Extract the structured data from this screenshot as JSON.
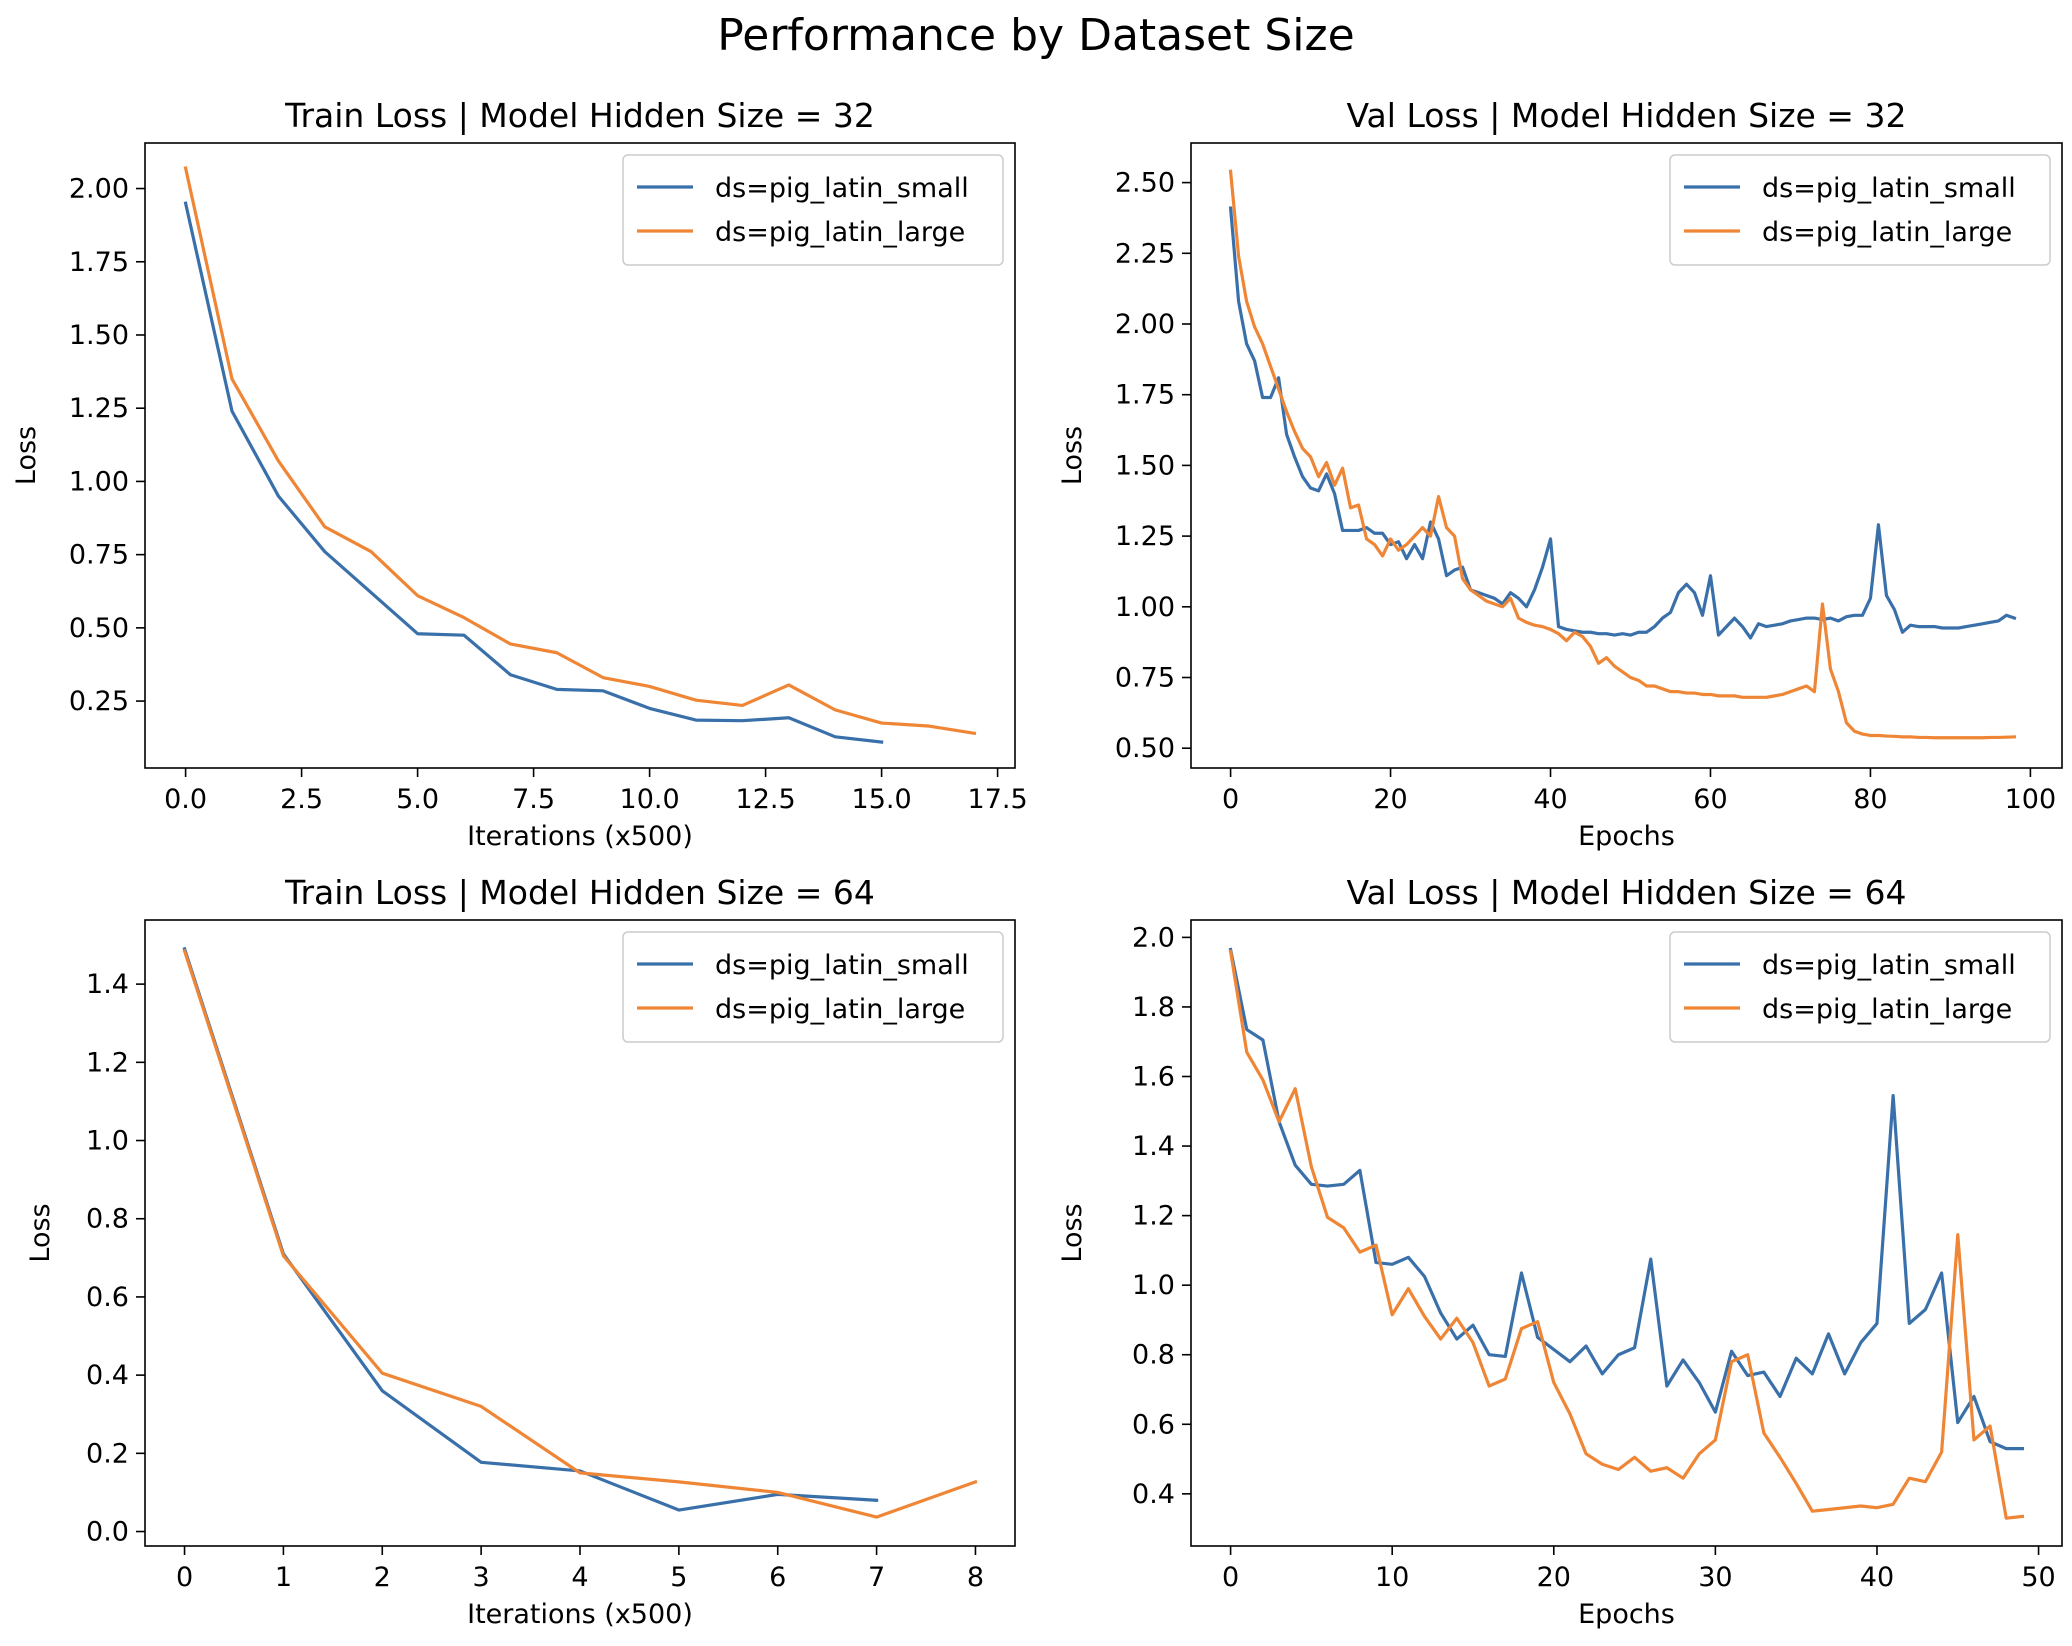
{
  "suptitle": "Performance by Dataset Size",
  "colors": {
    "pig_latin_small": "#3a70aa",
    "pig_latin_large": "#ef8636"
  },
  "chart_data": [
    {
      "type": "line",
      "title": "Train Loss | Model Hidden Size = 32",
      "xlabel": "Iterations (x500)",
      "ylabel": "Loss",
      "xlim": [
        -0.875,
        17.875
      ],
      "ylim": [
        0.0215,
        2.1555
      ],
      "xticks": [
        0.0,
        2.5,
        5.0,
        7.5,
        10.0,
        12.5,
        15.0,
        17.5
      ],
      "xtick_labels": [
        "0.0",
        "2.5",
        "5.0",
        "7.5",
        "10.0",
        "12.5",
        "15.0",
        "17.5"
      ],
      "yticks": [
        0.25,
        0.5,
        0.75,
        1.0,
        1.25,
        1.5,
        1.75,
        2.0
      ],
      "ytick_labels": [
        "0.25",
        "0.50",
        "0.75",
        "1.00",
        "1.25",
        "1.50",
        "1.75",
        "2.00"
      ],
      "legend": "top-right",
      "series": [
        {
          "name": "ds=pig_latin_small",
          "color": "#3a70aa",
          "x": [
            0,
            1,
            2,
            3,
            4,
            5,
            6,
            7,
            8,
            9,
            10,
            11,
            12,
            13,
            14,
            15
          ],
          "y": [
            1.95,
            1.24,
            0.95,
            0.76,
            0.62,
            0.48,
            0.475,
            0.34,
            0.29,
            0.285,
            0.225,
            0.185,
            0.183,
            0.193,
            0.128,
            0.11
          ]
        },
        {
          "name": "ds=pig_latin_large",
          "color": "#ef8636",
          "x": [
            0,
            1,
            2,
            3,
            4,
            5,
            6,
            7,
            8,
            9,
            10,
            11,
            12,
            13,
            14,
            15,
            16,
            17
          ],
          "y": [
            2.07,
            1.35,
            1.07,
            0.845,
            0.76,
            0.61,
            0.535,
            0.445,
            0.415,
            0.33,
            0.3,
            0.253,
            0.235,
            0.305,
            0.22,
            0.175,
            0.165,
            0.14
          ]
        }
      ]
    },
    {
      "type": "line",
      "title": "Val Loss | Model Hidden Size = 32",
      "xlabel": "Epochs",
      "ylabel": "Loss",
      "xlim": [
        -4.95,
        103.95
      ],
      "ylim": [
        0.43,
        2.64
      ],
      "xticks": [
        0,
        20,
        40,
        60,
        80,
        100
      ],
      "xtick_labels": [
        "0",
        "20",
        "40",
        "60",
        "80",
        "100"
      ],
      "yticks": [
        0.5,
        0.75,
        1.0,
        1.25,
        1.5,
        1.75,
        2.0,
        2.25,
        2.5
      ],
      "ytick_labels": [
        "0.50",
        "0.75",
        "1.00",
        "1.25",
        "1.50",
        "1.75",
        "2.00",
        "2.25",
        "2.50"
      ],
      "legend": "top-right",
      "series": [
        {
          "name": "ds=pig_latin_small",
          "color": "#3a70aa",
          "x": [
            0,
            1,
            2,
            3,
            4,
            5,
            6,
            7,
            8,
            9,
            10,
            11,
            12,
            13,
            14,
            15,
            16,
            17,
            18,
            19,
            20,
            21,
            22,
            23,
            24,
            25,
            26,
            27,
            28,
            29,
            30,
            31,
            32,
            33,
            34,
            35,
            36,
            37,
            38,
            39,
            40,
            41,
            42,
            43,
            44,
            45,
            46,
            47,
            48,
            49,
            50,
            51,
            52,
            53,
            54,
            55,
            56,
            57,
            58,
            59,
            60,
            61,
            62,
            63,
            64,
            65,
            66,
            67,
            68,
            69,
            70,
            71,
            72,
            73,
            74,
            75,
            76,
            77,
            78,
            79,
            80,
            81,
            82,
            83,
            84,
            85,
            86,
            87,
            88,
            89,
            90,
            91,
            92,
            93,
            94,
            95,
            96,
            97,
            98
          ],
          "y": [
            2.41,
            2.08,
            1.93,
            1.87,
            1.74,
            1.74,
            1.81,
            1.61,
            1.53,
            1.46,
            1.42,
            1.41,
            1.47,
            1.4,
            1.27,
            1.27,
            1.27,
            1.28,
            1.26,
            1.26,
            1.22,
            1.23,
            1.17,
            1.22,
            1.17,
            1.3,
            1.24,
            1.11,
            1.13,
            1.14,
            1.06,
            1.05,
            1.04,
            1.03,
            1.01,
            1.05,
            1.03,
            1.0,
            1.06,
            1.14,
            1.24,
            0.93,
            0.92,
            0.915,
            0.91,
            0.91,
            0.905,
            0.905,
            0.9,
            0.905,
            0.9,
            0.91,
            0.91,
            0.93,
            0.96,
            0.98,
            1.05,
            1.08,
            1.05,
            0.97,
            1.11,
            0.9,
            0.93,
            0.96,
            0.93,
            0.89,
            0.94,
            0.93,
            0.935,
            0.94,
            0.95,
            0.955,
            0.96,
            0.96,
            0.955,
            0.96,
            0.95,
            0.965,
            0.97,
            0.97,
            1.03,
            1.29,
            1.04,
            0.99,
            0.91,
            0.935,
            0.93,
            0.93,
            0.93,
            0.925,
            0.925,
            0.925,
            0.93,
            0.935,
            0.94,
            0.945,
            0.95,
            0.97,
            0.96
          ]
        },
        {
          "name": "ds=pig_latin_large",
          "color": "#ef8636",
          "x": [
            0,
            1,
            2,
            3,
            4,
            5,
            6,
            7,
            8,
            9,
            10,
            11,
            12,
            13,
            14,
            15,
            16,
            17,
            18,
            19,
            20,
            21,
            22,
            23,
            24,
            25,
            26,
            27,
            28,
            29,
            30,
            31,
            32,
            33,
            34,
            35,
            36,
            37,
            38,
            39,
            40,
            41,
            42,
            43,
            44,
            45,
            46,
            47,
            48,
            49,
            50,
            51,
            52,
            53,
            54,
            55,
            56,
            57,
            58,
            59,
            60,
            61,
            62,
            63,
            64,
            65,
            66,
            67,
            68,
            69,
            70,
            71,
            72,
            73,
            74,
            75,
            76,
            77,
            78,
            79,
            80,
            81,
            82,
            83,
            84,
            85,
            86,
            87,
            88,
            89,
            90,
            91,
            92,
            93,
            94,
            95,
            96,
            97,
            98
          ],
          "y": [
            2.54,
            2.24,
            2.08,
            1.99,
            1.93,
            1.85,
            1.77,
            1.69,
            1.62,
            1.56,
            1.53,
            1.46,
            1.51,
            1.43,
            1.49,
            1.35,
            1.36,
            1.24,
            1.22,
            1.18,
            1.24,
            1.2,
            1.22,
            1.25,
            1.28,
            1.25,
            1.39,
            1.28,
            1.25,
            1.1,
            1.06,
            1.04,
            1.02,
            1.01,
            1.0,
            1.03,
            0.96,
            0.945,
            0.935,
            0.93,
            0.92,
            0.905,
            0.88,
            0.91,
            0.895,
            0.86,
            0.8,
            0.82,
            0.79,
            0.77,
            0.75,
            0.74,
            0.72,
            0.72,
            0.71,
            0.7,
            0.7,
            0.695,
            0.695,
            0.69,
            0.69,
            0.685,
            0.685,
            0.685,
            0.68,
            0.68,
            0.68,
            0.68,
            0.685,
            0.69,
            0.7,
            0.71,
            0.72,
            0.7,
            1.01,
            0.78,
            0.7,
            0.59,
            0.56,
            0.55,
            0.545,
            0.545,
            0.543,
            0.542,
            0.54,
            0.54,
            0.538,
            0.538,
            0.537,
            0.537,
            0.537,
            0.537,
            0.537,
            0.537,
            0.537,
            0.538,
            0.538,
            0.539,
            0.54
          ]
        }
      ]
    },
    {
      "type": "line",
      "title": "Train Loss | Model Hidden Size = 64",
      "xlabel": "Iterations (x500)",
      "ylabel": "Loss",
      "xlim": [
        -0.4,
        8.4
      ],
      "ylim": [
        -0.037,
        1.564
      ],
      "xticks": [
        0,
        1,
        2,
        3,
        4,
        5,
        6,
        7,
        8
      ],
      "xtick_labels": [
        "0",
        "1",
        "2",
        "3",
        "4",
        "5",
        "6",
        "7",
        "8"
      ],
      "yticks": [
        0.0,
        0.2,
        0.4,
        0.6,
        0.8,
        1.0,
        1.2,
        1.4
      ],
      "ytick_labels": [
        "0.0",
        "0.2",
        "0.4",
        "0.6",
        "0.8",
        "1.0",
        "1.2",
        "1.4"
      ],
      "legend": "top-right",
      "series": [
        {
          "name": "ds=pig_latin_small",
          "color": "#3a70aa",
          "x": [
            0,
            1,
            2,
            3,
            4,
            5,
            6,
            7
          ],
          "y": [
            1.49,
            0.71,
            0.36,
            0.177,
            0.155,
            0.055,
            0.095,
            0.08
          ]
        },
        {
          "name": "ds=pig_latin_large",
          "color": "#ef8636",
          "x": [
            0,
            1,
            2,
            3,
            4,
            5,
            6,
            7,
            8
          ],
          "y": [
            1.485,
            0.705,
            0.405,
            0.32,
            0.15,
            0.127,
            0.1,
            0.037,
            0.127
          ]
        }
      ]
    },
    {
      "type": "line",
      "title": "Val Loss | Model Hidden Size = 64",
      "xlabel": "Epochs",
      "ylabel": "Loss",
      "xlim": [
        -2.45,
        51.45
      ],
      "ylim": [
        0.25,
        2.05
      ],
      "xticks": [
        0,
        10,
        20,
        30,
        40,
        50
      ],
      "xtick_labels": [
        "0",
        "10",
        "20",
        "30",
        "40",
        "50"
      ],
      "yticks": [
        0.4,
        0.6,
        0.8,
        1.0,
        1.2,
        1.4,
        1.6,
        1.8,
        2.0
      ],
      "ytick_labels": [
        "0.4",
        "0.6",
        "0.8",
        "1.0",
        "1.2",
        "1.4",
        "1.6",
        "1.8",
        "2.0"
      ],
      "legend": "top-right",
      "series": [
        {
          "name": "ds=pig_latin_small",
          "color": "#3a70aa",
          "x": [
            0,
            1,
            2,
            3,
            4,
            5,
            6,
            7,
            8,
            9,
            10,
            11,
            12,
            13,
            14,
            15,
            16,
            17,
            18,
            19,
            20,
            21,
            22,
            23,
            24,
            25,
            26,
            27,
            28,
            29,
            30,
            31,
            32,
            33,
            34,
            35,
            36,
            37,
            38,
            39,
            40,
            41,
            42,
            43,
            44,
            45,
            46,
            47,
            48,
            49
          ],
          "y": [
            1.965,
            1.735,
            1.705,
            1.47,
            1.345,
            1.29,
            1.285,
            1.29,
            1.33,
            1.065,
            1.06,
            1.08,
            1.025,
            0.92,
            0.845,
            0.885,
            0.8,
            0.795,
            1.035,
            0.85,
            0.815,
            0.78,
            0.825,
            0.745,
            0.8,
            0.82,
            1.075,
            0.71,
            0.785,
            0.72,
            0.635,
            0.81,
            0.74,
            0.75,
            0.68,
            0.79,
            0.745,
            0.86,
            0.745,
            0.835,
            0.89,
            1.545,
            0.89,
            0.93,
            1.035,
            0.605,
            0.68,
            0.55,
            0.53,
            0.53
          ]
        },
        {
          "name": "ds=pig_latin_large",
          "color": "#ef8636",
          "x": [
            0,
            1,
            2,
            3,
            4,
            5,
            6,
            7,
            8,
            9,
            10,
            11,
            12,
            13,
            14,
            15,
            16,
            17,
            18,
            19,
            20,
            21,
            22,
            23,
            24,
            25,
            26,
            27,
            28,
            29,
            30,
            31,
            32,
            33,
            34,
            35,
            36,
            37,
            38,
            39,
            40,
            41,
            42,
            43,
            44,
            45,
            46,
            47,
            48,
            49
          ],
          "y": [
            1.96,
            1.67,
            1.59,
            1.47,
            1.565,
            1.34,
            1.195,
            1.165,
            1.095,
            1.115,
            0.915,
            0.99,
            0.91,
            0.845,
            0.905,
            0.835,
            0.71,
            0.73,
            0.875,
            0.895,
            0.72,
            0.63,
            0.515,
            0.485,
            0.47,
            0.505,
            0.465,
            0.475,
            0.445,
            0.515,
            0.555,
            0.78,
            0.8,
            0.575,
            0.505,
            0.43,
            0.35,
            0.355,
            0.36,
            0.365,
            0.36,
            0.37,
            0.445,
            0.435,
            0.52,
            1.145,
            0.555,
            0.595,
            0.33,
            0.335
          ]
        }
      ]
    }
  ]
}
